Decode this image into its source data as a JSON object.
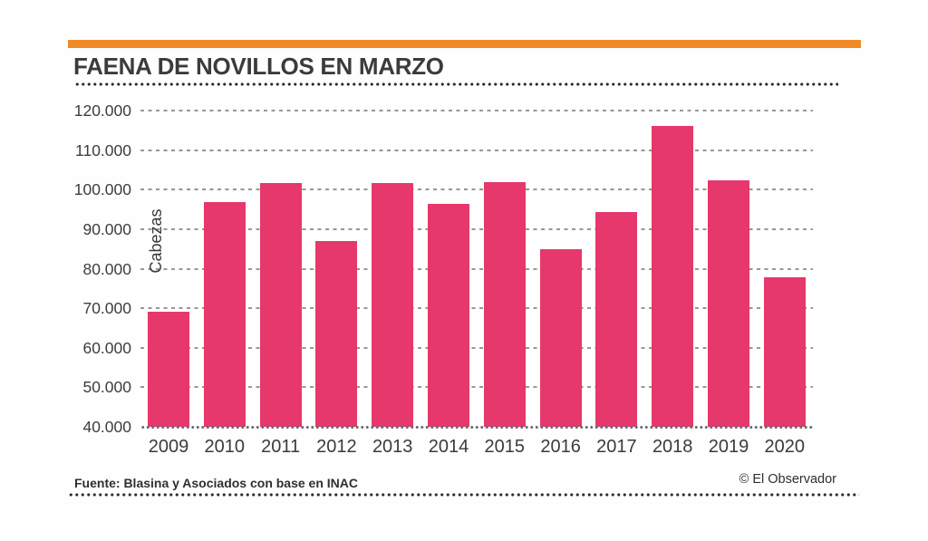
{
  "footer": {
    "source": "Fuente: Blasina y Asociados con base en INAC",
    "credit": "© El Observador"
  },
  "colors": {
    "accent_orange": "#ef8a26",
    "bar_pink": "#e6386c",
    "grid_gray": "#979797",
    "text_dark": "#3b3b3b"
  },
  "chart_data": {
    "type": "bar",
    "title": "FAENA DE NOVILLOS EN MARZO",
    "ylabel": "Cabezas",
    "xlabel": "",
    "categories": [
      "2009",
      "2010",
      "2011",
      "2012",
      "2013",
      "2014",
      "2015",
      "2016",
      "2017",
      "2018",
      "2019",
      "2020"
    ],
    "values": [
      69000,
      96800,
      101700,
      87000,
      101600,
      96400,
      102000,
      85000,
      94300,
      116100,
      102300,
      77900
    ],
    "ylim": [
      40000,
      120000
    ],
    "ytick_step": 10000,
    "ytick_labels": [
      "40.000",
      "50.000",
      "60.000",
      "70.000",
      "80.000",
      "90.000",
      "100.000",
      "110.000",
      "120.000"
    ],
    "grid": "dashed-horizontal",
    "legend": "none"
  }
}
